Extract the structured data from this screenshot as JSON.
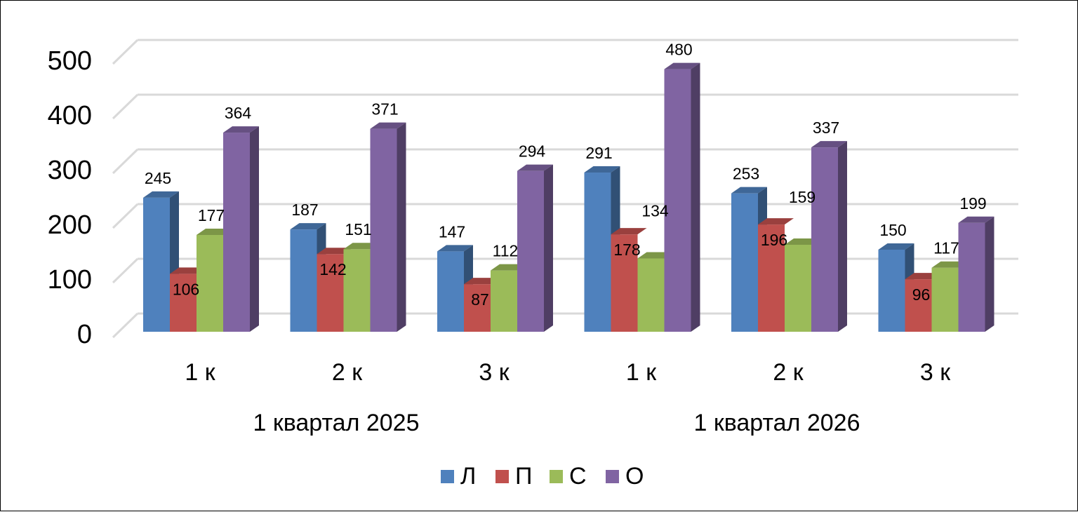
{
  "chart_data": {
    "type": "bar",
    "style": "3d-clustered-column",
    "title": "",
    "xlabel": "",
    "ylabel": "",
    "ylim": [
      0,
      500
    ],
    "yticks": [
      0,
      100,
      200,
      300,
      400,
      500
    ],
    "grid": true,
    "legend_position": "bottom",
    "groups": [
      {
        "label": "1 квартал 2025",
        "categories": [
          "1 к",
          "2 к",
          "3 к"
        ]
      },
      {
        "label": "1 квартал 2026",
        "categories": [
          "1 к",
          "2 к",
          "3 к"
        ]
      }
    ],
    "categories": [
      "1 к",
      "2 к",
      "3 к",
      "1 к",
      "2 к",
      "3 к"
    ],
    "series": [
      {
        "name": "Л",
        "color": "#4F81BD",
        "values": [
          245,
          187,
          147,
          291,
          253,
          150
        ]
      },
      {
        "name": "П",
        "color": "#C0504D",
        "values": [
          106,
          142,
          87,
          178,
          196,
          96
        ]
      },
      {
        "name": "С",
        "color": "#9BBB59",
        "values": [
          177,
          151,
          112,
          134,
          159,
          117
        ]
      },
      {
        "name": "О",
        "color": "#8064A2",
        "values": [
          364,
          371,
          294,
          480,
          337,
          199
        ]
      }
    ]
  }
}
